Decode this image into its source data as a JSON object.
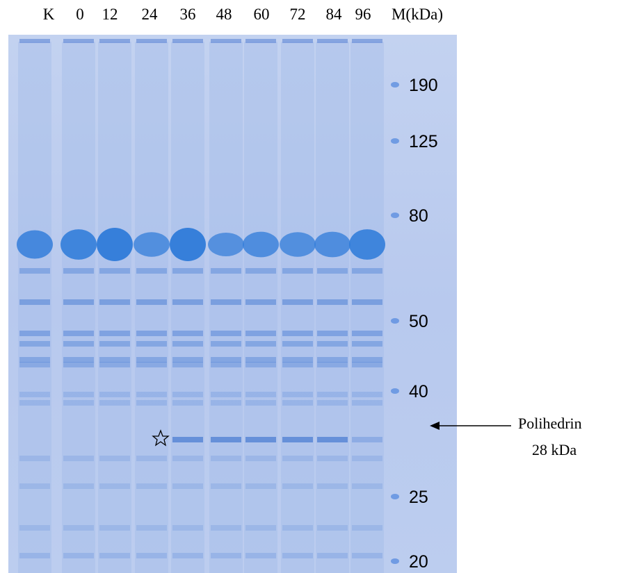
{
  "lanes": [
    "K",
    "0",
    "12",
    "24",
    "36",
    "48",
    "60",
    "72",
    "84",
    "96",
    "M(kDa)"
  ],
  "markers": [
    "190",
    "125",
    "80",
    "50",
    "40",
    "25",
    "20"
  ],
  "annotation": {
    "name": "Polihedrin",
    "size": "28 kDa"
  }
}
